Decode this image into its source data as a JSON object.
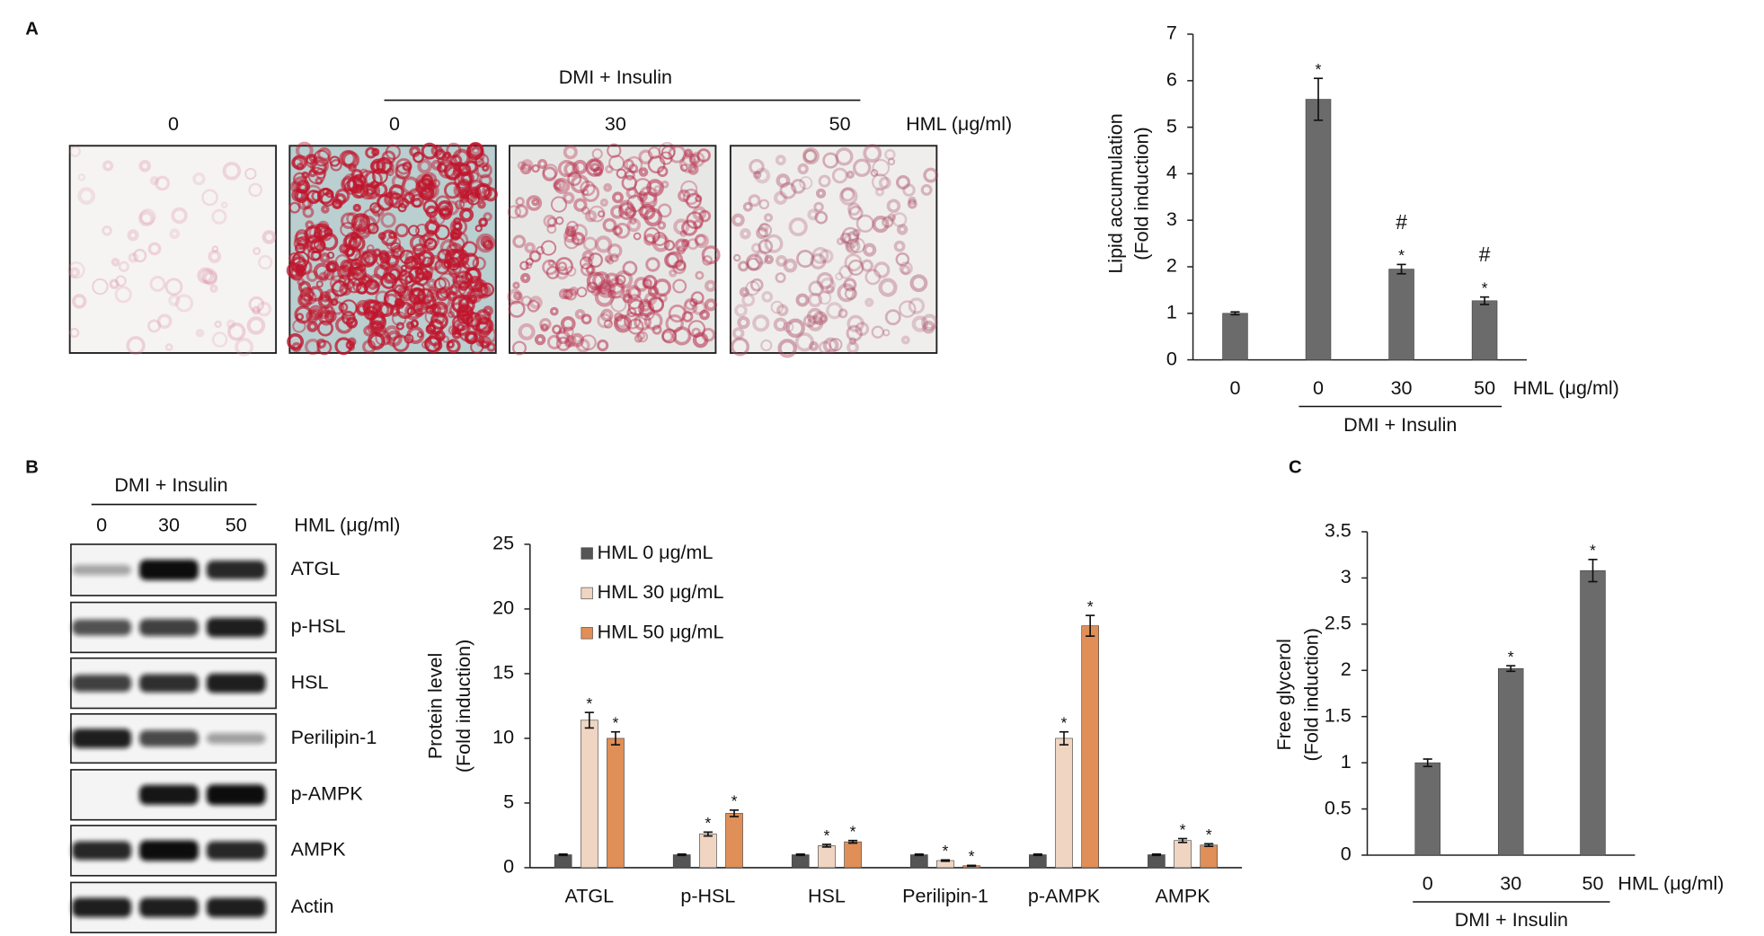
{
  "panel_labels": {
    "a": "A",
    "b": "B",
    "c": "C"
  },
  "panel_a": {
    "group_label": "DMI + Insulin",
    "doses": [
      "0",
      "0",
      "30",
      "50"
    ],
    "unit": "HML (μg/ml)"
  },
  "blot": {
    "group_label": "DMI + Insulin",
    "doses": [
      "0",
      "30",
      "50"
    ],
    "unit": "HML (μg/ml)",
    "proteins": [
      "ATGL",
      "p-HSL",
      "HSL",
      "Perilipin-1",
      "p-AMPK",
      "AMPK",
      "Actin"
    ]
  },
  "chart_data": [
    {
      "type": "bar",
      "ylabel": [
        "Lipid accumulation",
        "(Fold induction)"
      ],
      "categories": [
        "0",
        "0",
        "30",
        "50"
      ],
      "values": [
        1,
        5.6,
        1.95,
        1.27
      ],
      "errors": [
        0.03,
        0.45,
        0.1,
        0.08
      ],
      "significance": [
        null,
        [
          "*"
        ],
        [
          "*",
          "#"
        ],
        [
          "*",
          "#"
        ]
      ],
      "color": "#6b6b6b",
      "x_unit": "HML (μg/ml)",
      "group_label": "DMI + Insulin",
      "ylim": [
        0,
        7
      ],
      "yticks": [
        0,
        1,
        2,
        3,
        4,
        5,
        6,
        7
      ]
    },
    {
      "type": "bar",
      "ylabel": [
        "Protein level",
        "(Fold induction)"
      ],
      "categories": [
        "ATGL",
        "p-HSL",
        "HSL",
        "Perilipin-1",
        "p-AMPK",
        "AMPK"
      ],
      "series": [
        {
          "name": "HML  0 μg/mL",
          "color": "#555555",
          "values": [
            1,
            1,
            1,
            1,
            1,
            1
          ],
          "errors": [
            0.05,
            0.05,
            0.05,
            0.05,
            0.05,
            0.05
          ]
        },
        {
          "name": "HML  30 μg/mL",
          "color": "#efd5c2",
          "values": [
            11.4,
            2.6,
            1.7,
            0.55,
            10.0,
            2.1
          ],
          "errors": [
            0.6,
            0.15,
            0.1,
            0.05,
            0.5,
            0.15
          ],
          "significance": [
            "*",
            "*",
            "*",
            "*",
            "*",
            "*"
          ]
        },
        {
          "name": "HML  50 μg/mL",
          "color": "#df8f57",
          "values": [
            10.0,
            4.2,
            2.0,
            0.15,
            18.7,
            1.75
          ],
          "errors": [
            0.5,
            0.25,
            0.1,
            0.03,
            0.8,
            0.1
          ],
          "significance": [
            "*",
            "*",
            "*",
            "*",
            "*",
            "*"
          ]
        }
      ],
      "ylim": [
        0,
        25
      ],
      "yticks": [
        0,
        5,
        10,
        15,
        20,
        25
      ]
    },
    {
      "type": "bar",
      "ylabel": [
        "Free glycerol",
        "(Fold induction)"
      ],
      "categories": [
        "0",
        "30",
        "50"
      ],
      "values": [
        1,
        2.02,
        3.08
      ],
      "errors": [
        0.04,
        0.03,
        0.12
      ],
      "significance": [
        null,
        "*",
        "*"
      ],
      "color": "#6b6b6b",
      "x_unit": "HML (μg/ml)",
      "group_label": "DMI + Insulin",
      "ylim": [
        0,
        3.5
      ],
      "yticks": [
        0,
        0.5,
        1,
        1.5,
        2,
        2.5,
        3,
        3.5
      ]
    }
  ]
}
